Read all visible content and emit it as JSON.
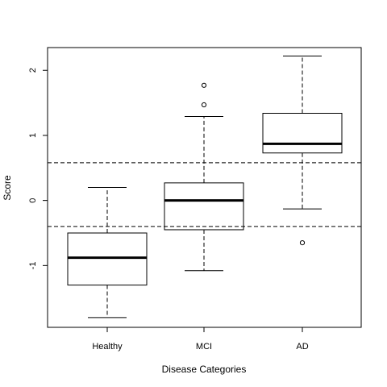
{
  "chart_data": {
    "type": "boxplot",
    "title": "",
    "xlabel": "Disease Categories",
    "ylabel": "Score",
    "categories": [
      "Healthy",
      "MCI",
      "AD"
    ],
    "ylim": [
      -1.95,
      2.35
    ],
    "yticks": [
      -1,
      0,
      1,
      2
    ],
    "ytick_labels": [
      "-1",
      "0",
      "1",
      "2"
    ],
    "grid": false,
    "legend": "none",
    "boxes": [
      {
        "category": "Healthy",
        "whisker_low": -1.8,
        "q1": -1.3,
        "median": -0.88,
        "q3": -0.5,
        "whisker_high": 0.2,
        "outliers": []
      },
      {
        "category": "MCI",
        "whisker_low": -1.08,
        "q1": -0.45,
        "median": 0.0,
        "q3": 0.27,
        "whisker_high": 1.29,
        "outliers": [
          1.47,
          1.77
        ]
      },
      {
        "category": "AD",
        "whisker_low": -0.13,
        "q1": 0.73,
        "median": 0.87,
        "q3": 1.34,
        "whisker_high": 2.22,
        "outliers": [
          -0.65
        ]
      }
    ],
    "reference_lines": [
      0.58,
      -0.4
    ],
    "colors": {
      "stroke": "#000000",
      "background": "#ffffff"
    }
  }
}
